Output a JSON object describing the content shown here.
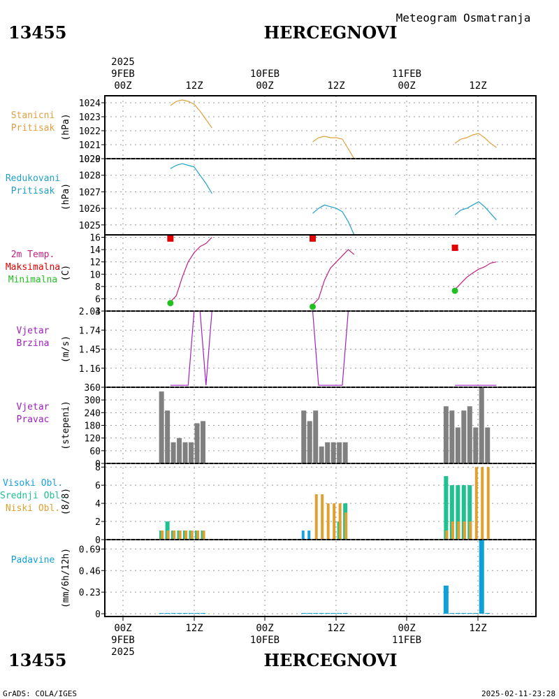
{
  "header": {
    "station_id": "13455",
    "station_name": "HERCEGNOVI",
    "product": "Meteogram Osmatranja",
    "credit": "GrADS: COLA/IGES",
    "timestamp": "2025-02-11-23:28"
  },
  "time_axis": {
    "top_year": "2025",
    "dates": [
      "9FEB",
      "10FEB",
      "11FEB"
    ],
    "ticks": [
      "00Z",
      "12Z",
      "00Z",
      "12Z",
      "00Z",
      "12Z"
    ],
    "bottom_year": "2025"
  },
  "colors": {
    "pressure_station": "#e0a040",
    "pressure_reduced": "#20a0c8",
    "temp": "#c02080",
    "temp_max": "#e00000",
    "temp_min": "#20c020",
    "wind": "#a020c0",
    "wind_dir_bar": "#808080",
    "cloud_high": "#1aa0e0",
    "cloud_mid": "#20c090",
    "cloud_low": "#e0a030",
    "precip": "#10a0d8"
  },
  "chart_data": [
    {
      "type": "line",
      "id": "stanicni",
      "labels": [
        "Stanicni",
        "Pritisak"
      ],
      "ylabel": "(hPa)",
      "ylim": [
        1020,
        1024.5
      ],
      "yticks": [
        1020,
        1021,
        1022,
        1023,
        1024
      ],
      "grid": true,
      "segments": [
        {
          "x": [
            8,
            9,
            10,
            11,
            12,
            13,
            14,
            15
          ],
          "y": [
            1023.8,
            1024.1,
            1024.2,
            1024.1,
            1023.9,
            1023.4,
            1022.8,
            1022.2
          ]
        },
        {
          "x": [
            32,
            33,
            34,
            35,
            36,
            37,
            38,
            39
          ],
          "y": [
            1021.2,
            1021.5,
            1021.6,
            1021.5,
            1021.5,
            1021.4,
            1020.7,
            1020
          ]
        },
        {
          "x": [
            56,
            57,
            58,
            59,
            60,
            61,
            62,
            63
          ],
          "y": [
            1021.1,
            1021.4,
            1021.5,
            1021.7,
            1021.8,
            1021.5,
            1021.1,
            1020.8
          ]
        }
      ]
    },
    {
      "type": "line",
      "id": "redukovani",
      "labels": [
        "Redukovani",
        "Pritisak"
      ],
      "ylabel": "(hPa)",
      "ylim": [
        1024.4,
        1029
      ],
      "yticks": [
        1025,
        1026,
        1027,
        1028,
        1029
      ],
      "grid": true,
      "segments": [
        {
          "x": [
            8,
            9,
            10,
            11,
            12,
            13,
            14,
            15
          ],
          "y": [
            1028.4,
            1028.6,
            1028.7,
            1028.6,
            1028.5,
            1028.0,
            1027.5,
            1026.9
          ]
        },
        {
          "x": [
            32,
            33,
            34,
            35,
            36,
            37,
            38,
            39
          ],
          "y": [
            1025.7,
            1026.0,
            1026.2,
            1026.1,
            1026.0,
            1025.8,
            1025.2,
            1024.4
          ]
        },
        {
          "x": [
            56,
            57,
            58,
            59,
            60,
            61,
            62,
            63
          ],
          "y": [
            1025.6,
            1025.9,
            1026.0,
            1026.2,
            1026.4,
            1026.1,
            1025.7,
            1025.3
          ]
        }
      ]
    },
    {
      "type": "line",
      "id": "temperatura",
      "labels": [
        "2m Temp.",
        "Maksimalna",
        "Minimalna"
      ],
      "ylabel": "(C)",
      "ylim": [
        4,
        16.4
      ],
      "yticks": [
        4,
        6,
        8,
        10,
        12,
        14,
        16
      ],
      "grid": true,
      "segments": [
        {
          "x": [
            8,
            9,
            10,
            11,
            12,
            13,
            14,
            15
          ],
          "y": [
            5.5,
            6.5,
            9.5,
            12,
            13.5,
            14.5,
            15,
            16
          ]
        },
        {
          "x": [
            32,
            33,
            34,
            35,
            36,
            37,
            38,
            39
          ],
          "y": [
            5,
            6,
            9,
            11,
            12,
            13,
            14,
            13.2
          ]
        },
        {
          "x": [
            56,
            57,
            58,
            59,
            60,
            61,
            62,
            63
          ],
          "y": [
            7.5,
            8.5,
            9.5,
            10.2,
            10.8,
            11.2,
            11.8,
            12
          ]
        }
      ],
      "max": {
        "x": [
          8,
          32,
          56
        ],
        "y": [
          15.8,
          15.8,
          14.3
        ]
      },
      "min": {
        "x": [
          8,
          32,
          56
        ],
        "y": [
          5.3,
          4.7,
          7.3
        ]
      }
    },
    {
      "type": "line",
      "id": "vjetar_brzina",
      "labels": [
        "Vjetar",
        "Brzina"
      ],
      "ylabel": "(m/s)",
      "ylim": [
        0.87,
        2.03
      ],
      "yticks": [
        1.16,
        1.45,
        1.74,
        2.03
      ],
      "grid": true,
      "segments": [
        {
          "x": [
            8,
            9,
            10,
            11,
            12,
            13,
            14,
            15
          ],
          "y": [
            0.9,
            0.9,
            0.9,
            0.9,
            2.03,
            2.03,
            0.9,
            2.03
          ]
        },
        {
          "x": [
            32,
            33,
            34,
            35,
            36,
            37,
            38,
            39
          ],
          "y": [
            2.03,
            0.9,
            0.9,
            0.9,
            0.9,
            0.9,
            2.03,
            2.03
          ]
        },
        {
          "x": [
            56,
            57,
            58,
            59,
            60,
            61,
            62,
            63
          ],
          "y": [
            0.9,
            0.9,
            0.9,
            0.9,
            0.9,
            0.9,
            0.9,
            0.9
          ]
        }
      ]
    },
    {
      "type": "bar",
      "id": "vjetar_pravac",
      "labels": [
        "Vjetar",
        "Pravac"
      ],
      "ylabel": "(stepeni)",
      "ylim": [
        0,
        360
      ],
      "yticks": [
        0,
        60,
        120,
        180,
        240,
        300,
        360
      ],
      "grid": true,
      "x": [
        6.5,
        7.5,
        8.5,
        9.5,
        10.5,
        11.5,
        12.5,
        13.5,
        30.5,
        31.5,
        32.5,
        33.5,
        34.5,
        35.5,
        36.5,
        37.5,
        54.5,
        55.5,
        56.5,
        57.5,
        58.5,
        59.5,
        60.5,
        61.5
      ],
      "values": [
        340,
        250,
        100,
        120,
        100,
        100,
        190,
        200,
        250,
        200,
        250,
        80,
        100,
        100,
        100,
        100,
        270,
        250,
        170,
        250,
        270,
        170,
        360,
        170
      ]
    },
    {
      "type": "bar",
      "id": "oblacnost",
      "labels": [
        "Visoki Obl.",
        "Srednji Obl.",
        "Niski Obl."
      ],
      "ylabel": "(8/8)",
      "ylim": [
        0,
        8.4
      ],
      "yticks": [
        0,
        2,
        4,
        6,
        8
      ],
      "grid": true,
      "x": [
        6.5,
        7.5,
        8.5,
        9.5,
        10.5,
        11.5,
        12.5,
        13.5,
        30.5,
        31.5,
        32.5,
        33.5,
        34.5,
        35.5,
        36.5,
        37.5,
        54.5,
        55.5,
        56.5,
        57.5,
        58.5,
        59.5,
        60.5,
        61.5
      ],
      "series": [
        {
          "name": "Visoki Obl.",
          "values": [
            1,
            1,
            1,
            1,
            1,
            1,
            1,
            1,
            1,
            1,
            0,
            0,
            0,
            0,
            0,
            0,
            0,
            0,
            0,
            0,
            0,
            0,
            0,
            0
          ]
        },
        {
          "name": "Srednji Obl.",
          "values": [
            1,
            2,
            1,
            1,
            1,
            1,
            1,
            1,
            0,
            0,
            0,
            0,
            0,
            0,
            2,
            4,
            7,
            6,
            6,
            6,
            6,
            0,
            0,
            0
          ]
        },
        {
          "name": "Niski Obl.",
          "values": [
            1,
            1,
            1,
            1,
            1,
            1,
            1,
            1,
            0,
            0,
            5,
            5,
            4,
            4,
            4,
            3,
            1,
            2,
            2,
            2,
            2,
            8,
            8,
            8
          ]
        }
      ]
    },
    {
      "type": "bar",
      "id": "padavine",
      "labels": [
        "Padavine"
      ],
      "ylabel": "(mm/6h/12h)",
      "ylim": [
        -0.03,
        0.79
      ],
      "yticks": [
        0,
        0.23,
        0.46,
        0.69
      ],
      "grid": true,
      "x": [
        6.5,
        7.5,
        8.5,
        9.5,
        10.5,
        11.5,
        12.5,
        13.5,
        30.5,
        31.5,
        32.5,
        33.5,
        34.5,
        35.5,
        36.5,
        37.5,
        54.5,
        55.5,
        56.5,
        57.5,
        58.5,
        59.5,
        60.5,
        61.5
      ],
      "values": [
        0,
        0,
        0,
        0,
        0,
        0,
        0,
        0,
        0,
        0,
        0,
        0,
        0,
        0,
        0,
        0,
        0.3,
        0,
        0,
        0,
        0,
        0,
        0.8,
        0
      ]
    }
  ]
}
